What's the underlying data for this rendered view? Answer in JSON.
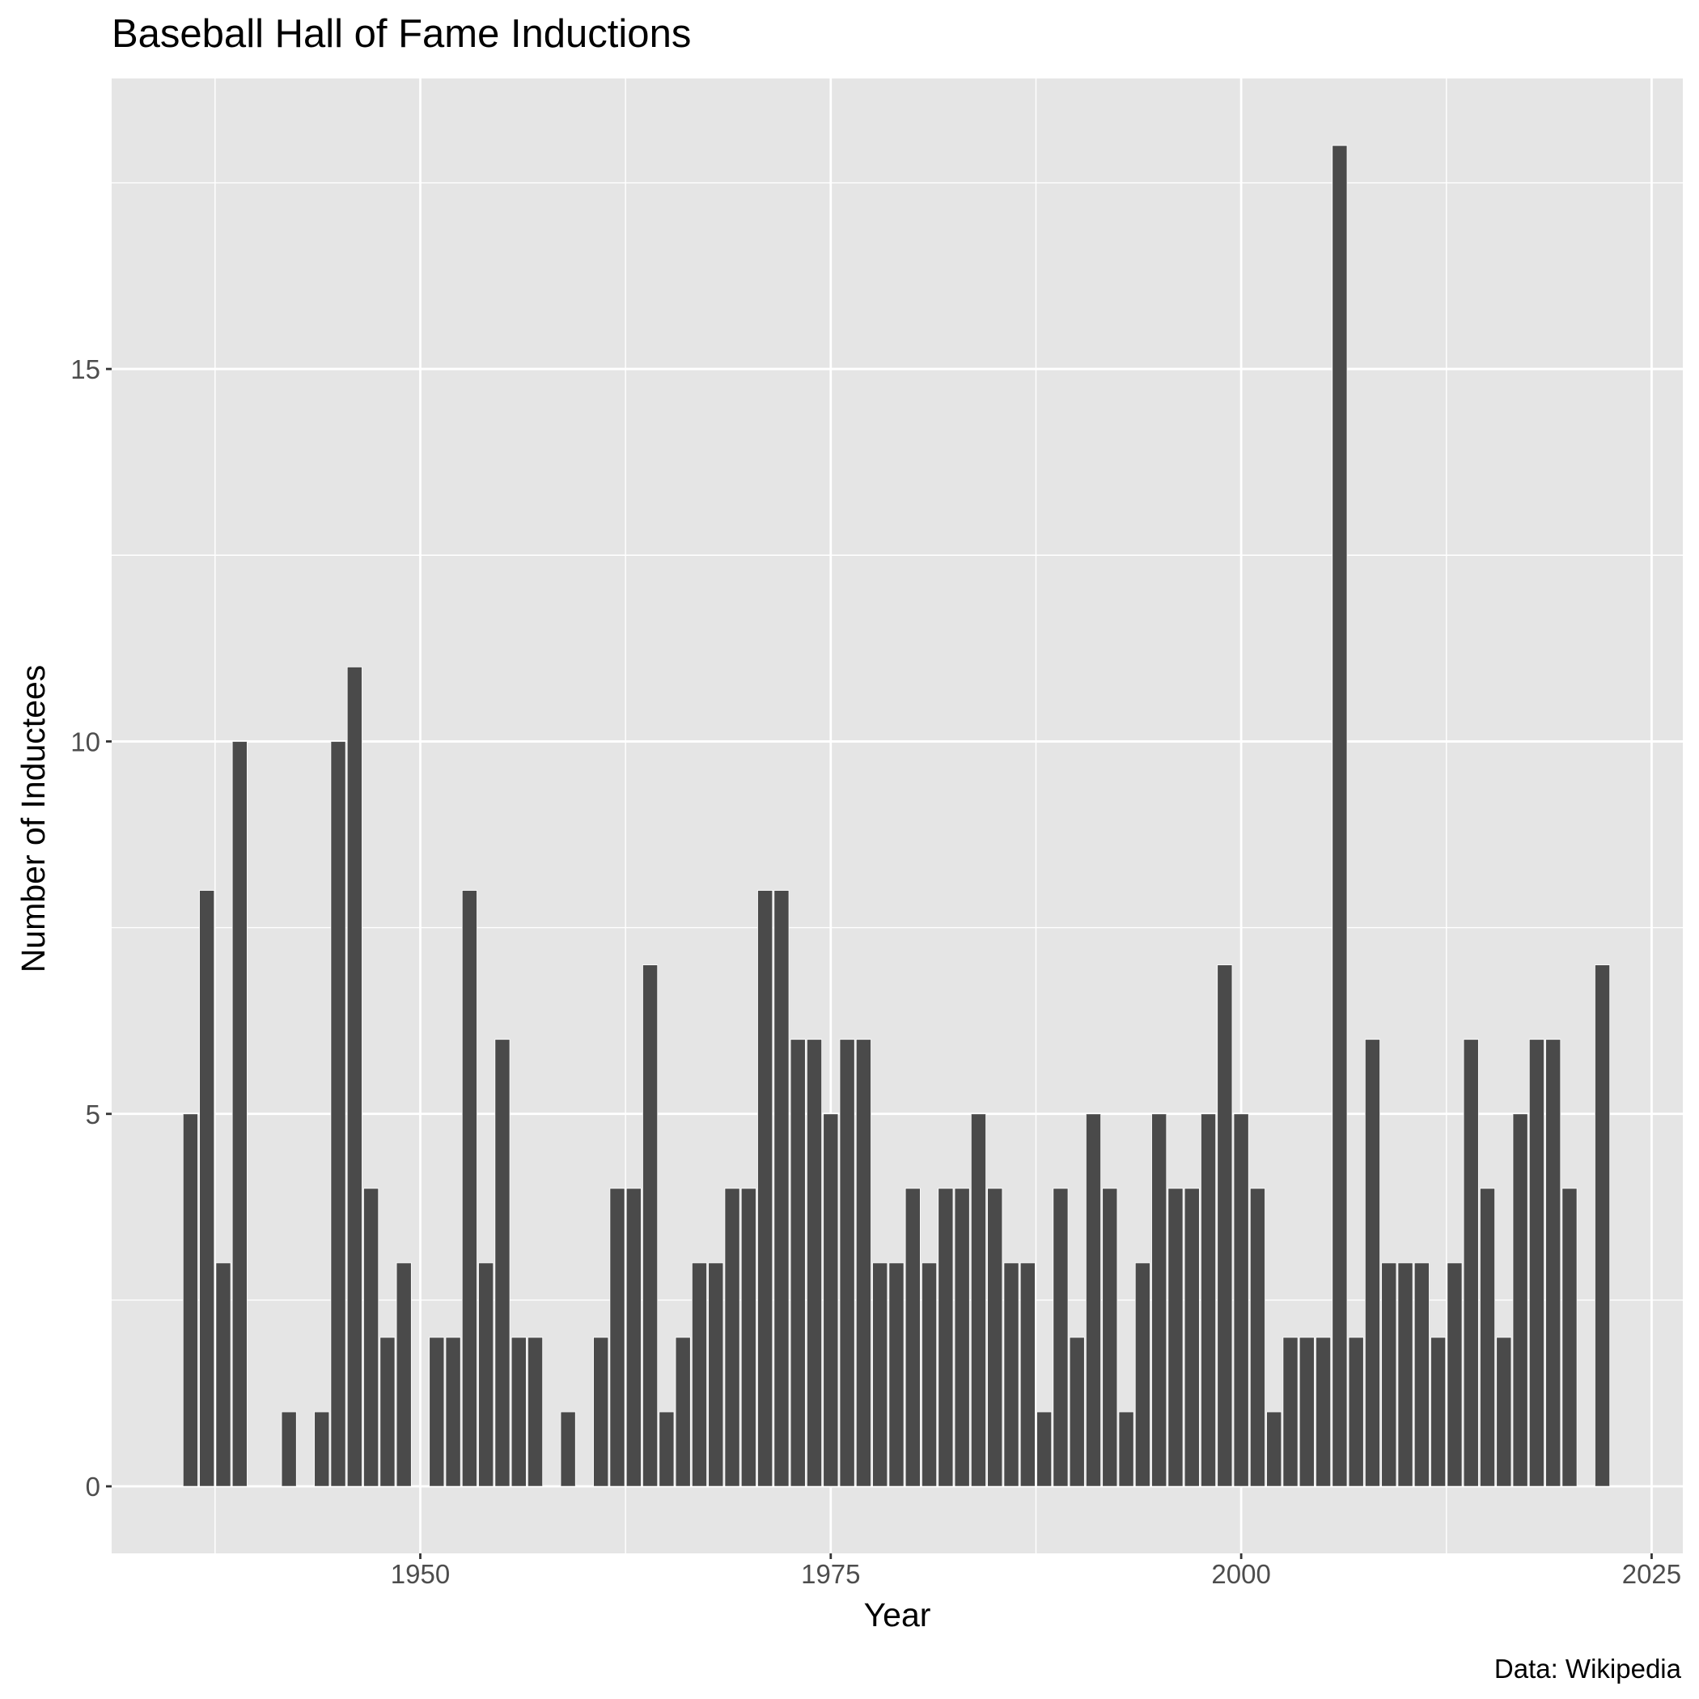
{
  "chart_data": {
    "type": "bar",
    "title": "Baseball Hall of Fame Inductions",
    "xlabel": "Year",
    "ylabel": "Number of Inductees",
    "caption": "Data: Wikipedia",
    "xlim": [
      1931.2,
      2026.9
    ],
    "ylim": [
      -0.9,
      18.9
    ],
    "x_ticks": [
      1950,
      1975,
      2000,
      2025
    ],
    "y_ticks": [
      0,
      5,
      10,
      15
    ],
    "grid": true,
    "bar_color": "#4a4a4a",
    "panel_color": "#e5e5e5",
    "years": [
      1936,
      1937,
      1938,
      1939,
      1942,
      1944,
      1945,
      1946,
      1947,
      1948,
      1949,
      1951,
      1952,
      1953,
      1954,
      1955,
      1956,
      1957,
      1959,
      1961,
      1962,
      1963,
      1964,
      1965,
      1966,
      1967,
      1968,
      1969,
      1970,
      1971,
      1972,
      1973,
      1974,
      1975,
      1976,
      1977,
      1978,
      1979,
      1980,
      1981,
      1982,
      1983,
      1984,
      1985,
      1986,
      1987,
      1988,
      1989,
      1990,
      1991,
      1992,
      1993,
      1994,
      1995,
      1996,
      1997,
      1998,
      1999,
      2000,
      2001,
      2002,
      2003,
      2004,
      2005,
      2006,
      2007,
      2008,
      2009,
      2010,
      2011,
      2012,
      2013,
      2014,
      2015,
      2016,
      2017,
      2018,
      2019,
      2020,
      2022
    ],
    "values": [
      5,
      8,
      3,
      10,
      1,
      1,
      10,
      11,
      4,
      2,
      3,
      2,
      2,
      8,
      3,
      6,
      2,
      2,
      1,
      2,
      4,
      4,
      7,
      1,
      2,
      3,
      3,
      4,
      4,
      8,
      8,
      6,
      6,
      5,
      6,
      6,
      3,
      3,
      4,
      3,
      4,
      4,
      5,
      4,
      3,
      3,
      1,
      4,
      2,
      5,
      4,
      1,
      3,
      5,
      4,
      4,
      5,
      7,
      5,
      4,
      1,
      2,
      2,
      2,
      18,
      2,
      6,
      3,
      3,
      3,
      2,
      3,
      6,
      4,
      2,
      5,
      6,
      6,
      4,
      7
    ]
  }
}
